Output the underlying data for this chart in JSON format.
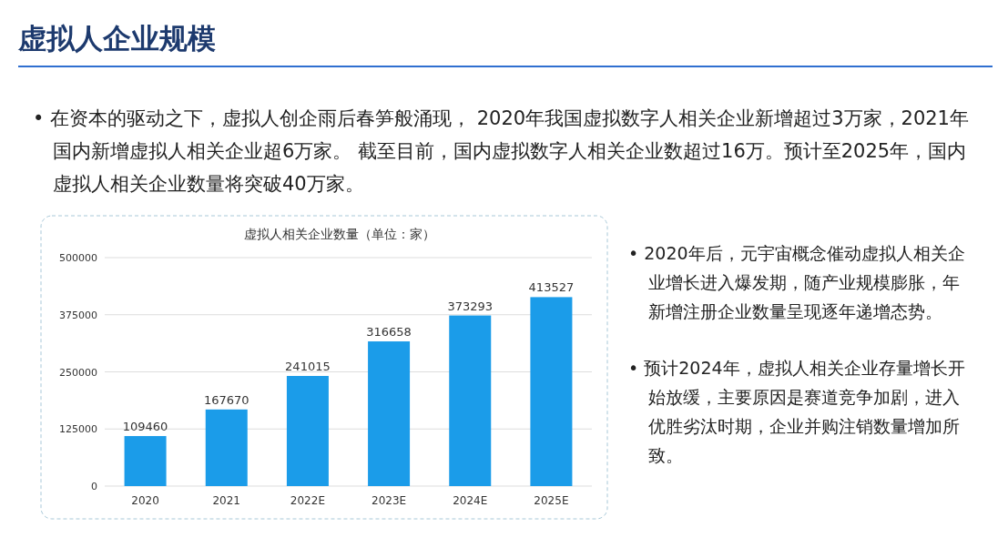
{
  "chart_data": {
    "type": "bar",
    "title": "虚拟人相关企业数量（单位：家）",
    "categories": [
      "2020",
      "2021",
      "2022E",
      "2023E",
      "2024E",
      "2025E"
    ],
    "values": [
      109460,
      167670,
      241015,
      316658,
      373293,
      413527
    ],
    "color": "#1b9ce9",
    "ylim": [
      0,
      500000
    ],
    "yticks": [
      0,
      125000,
      250000,
      375000,
      500000
    ],
    "grid": "y",
    "data_labels": true,
    "annotations": [
      "虚拟人企业规模",
      "• 在资本的驱动之下，虚拟人创企雨后春笋般涌现， 2020年我国虚拟数字人相关企业新增超过3万家，2021年国内新增虚拟人相关企业超6万家。 截至目前，国内虚拟数字人相关企业数超过16万。预计至2025年，国内虚拟人相关企业数量将突破40万家。",
      "• 2020年后，元宇宙概念催动虚拟人相关企业增长进入爆发期，随产业规模膨胀，年新增注册企业数量呈现逐年递增态势。",
      "• 预计2024年，虚拟人相关企业存量增长开始放缓，主要原因是赛道竞争加剧，进入优胜劣汰时期，企业并购注销数量增加所致。"
    ]
  }
}
